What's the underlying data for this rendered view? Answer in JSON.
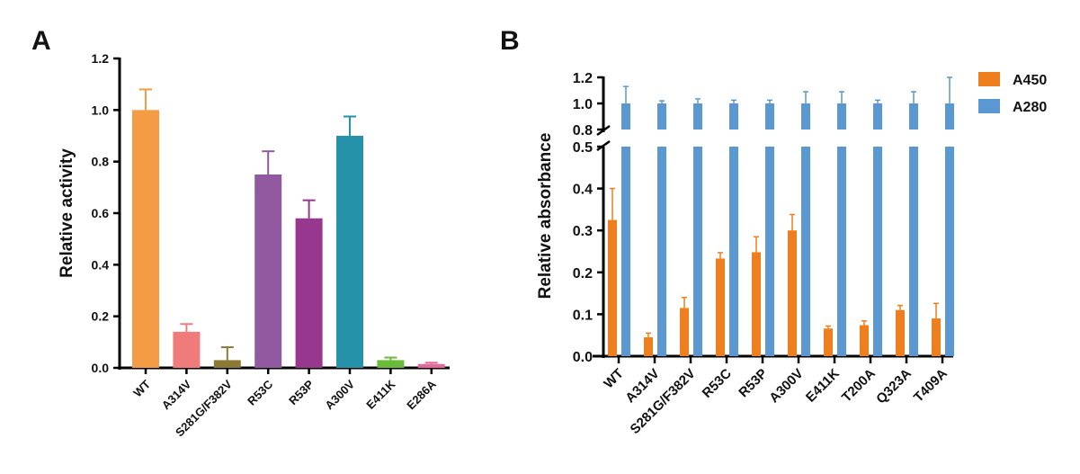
{
  "chart_data": [
    {
      "panel_label": "A",
      "type": "bar",
      "ylabel": "Relative activity",
      "ylim": [
        0,
        1.2
      ],
      "yticks": [
        "0.0",
        "0.2",
        "0.4",
        "0.6",
        "0.8",
        "1.0",
        "1.2"
      ],
      "categories": [
        "WT",
        "A314V",
        "S281G/F382V",
        "R53C",
        "R53P",
        "A300V",
        "E411K",
        "E286A"
      ],
      "values": [
        1.0,
        0.14,
        0.03,
        0.75,
        0.58,
        0.9,
        0.03,
        0.015
      ],
      "error_upper": [
        1.08,
        0.17,
        0.08,
        0.84,
        0.65,
        0.975,
        0.04,
        0.02
      ],
      "colors": [
        "#F39C45",
        "#EF7B7B",
        "#8B7A35",
        "#9159A0",
        "#97378E",
        "#2592A9",
        "#6BBB3A",
        "#E4689A"
      ],
      "grid": false
    },
    {
      "panel_label": "B",
      "type": "bar",
      "ylabel": "Relative absorbance",
      "y_axis_break": [
        0.5,
        0.8
      ],
      "ylim": [
        0,
        1.2
      ],
      "yticks_lower": [
        "0.0",
        "0.1",
        "0.2",
        "0.3",
        "0.4",
        "0.5"
      ],
      "yticks_upper": [
        "0.8",
        "1.0",
        "1.2"
      ],
      "categories": [
        "WT",
        "A314V",
        "S281G/F382V",
        "R53C",
        "R53P",
        "A300V",
        "E411K",
        "T200A",
        "Q323A",
        "T409A"
      ],
      "series": [
        {
          "name": "A450",
          "color": "#EE7F1E",
          "values": [
            0.325,
            0.045,
            0.115,
            0.233,
            0.248,
            0.3,
            0.066,
            0.074,
            0.11,
            0.09
          ],
          "error_upper": [
            0.4,
            0.055,
            0.14,
            0.247,
            0.285,
            0.338,
            0.072,
            0.084,
            0.121,
            0.126
          ]
        },
        {
          "name": "A280",
          "color": "#5B97D1",
          "values": [
            1,
            1,
            1,
            1,
            1,
            1,
            1,
            1,
            1,
            1
          ],
          "error_upper": [
            1.13,
            1.02,
            1.035,
            1.025,
            1.025,
            1.09,
            1.09,
            1.025,
            1.09,
            1.2
          ]
        }
      ],
      "legend": "top-right",
      "grid": false
    }
  ]
}
